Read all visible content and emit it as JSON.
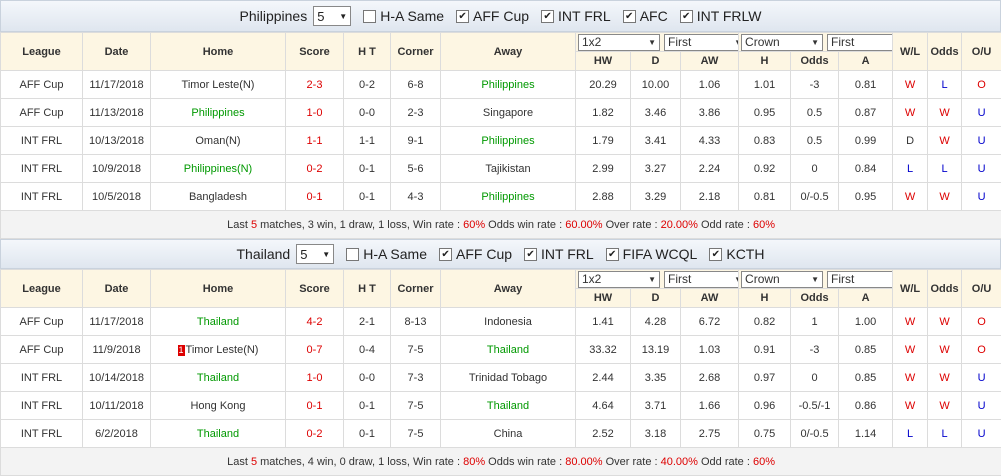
{
  "header_columns": [
    "League",
    "Date",
    "Home",
    "Score",
    "H T",
    "Corner",
    "Away"
  ],
  "odds_selects": [
    "1x2",
    "First",
    "Crown",
    "First"
  ],
  "odds_columns": [
    "HW",
    "D",
    "AW",
    "H",
    "Odds",
    "A"
  ],
  "result_columns": [
    "W/L",
    "Odds",
    "O/U"
  ],
  "sections": [
    {
      "team": "Philippines",
      "count": "5",
      "filters": [
        {
          "label": "H-A Same",
          "checked": false
        },
        {
          "label": "AFF Cup",
          "checked": true
        },
        {
          "label": "INT FRL",
          "checked": true
        },
        {
          "label": "AFC",
          "checked": true
        },
        {
          "label": "INT FRLW",
          "checked": true
        }
      ],
      "rows": [
        {
          "league": "AFF Cup",
          "date": "11/17/2018",
          "home": "Timor Leste(N)",
          "score": "2-3",
          "ht": "0-2",
          "corner": "6-8",
          "away": "Philippines",
          "hw": "20.29",
          "d": "10.00",
          "aw": "1.06",
          "h": "1.01",
          "odds": "-3",
          "a": "0.81",
          "wl": "W",
          "odds_result": "L",
          "ou": "O"
        },
        {
          "league": "AFF Cup",
          "date": "11/13/2018",
          "home": "Philippines",
          "score": "1-0",
          "ht": "0-0",
          "corner": "2-3",
          "away": "Singapore",
          "hw": "1.82",
          "d": "3.46",
          "aw": "3.86",
          "h": "0.95",
          "odds": "0.5",
          "a": "0.87",
          "wl": "W",
          "odds_result": "W",
          "ou": "U"
        },
        {
          "league": "INT FRL",
          "date": "10/13/2018",
          "home": "Oman(N)",
          "score": "1-1",
          "ht": "1-1",
          "corner": "9-1",
          "away": "Philippines",
          "hw": "1.79",
          "d": "3.41",
          "aw": "4.33",
          "h": "0.83",
          "odds": "0.5",
          "a": "0.99",
          "wl": "D",
          "odds_result": "W",
          "ou": "U"
        },
        {
          "league": "INT FRL",
          "date": "10/9/2018",
          "home": "Philippines(N)",
          "score": "0-2",
          "ht": "0-1",
          "corner": "5-6",
          "away": "Tajikistan",
          "hw": "2.99",
          "d": "3.27",
          "aw": "2.24",
          "h": "0.92",
          "odds": "0",
          "a": "0.84",
          "wl": "L",
          "odds_result": "L",
          "ou": "U"
        },
        {
          "league": "INT FRL",
          "date": "10/5/2018",
          "home": "Bangladesh",
          "score": "0-1",
          "ht": "0-1",
          "corner": "4-3",
          "away": "Philippines",
          "hw": "2.88",
          "d": "3.29",
          "aw": "2.18",
          "h": "0.81",
          "odds": "0/-0.5",
          "a": "0.95",
          "wl": "W",
          "odds_result": "W",
          "ou": "U"
        }
      ],
      "summary": [
        "Last ",
        "5",
        " matches, 3 win, 1 draw, 1 loss, Win rate : ",
        "60%",
        " Odds win rate : ",
        "60.00%",
        " Over rate : ",
        "20.00%",
        " Odd rate : ",
        "60%"
      ]
    },
    {
      "team": "Thailand",
      "count": "5",
      "filters": [
        {
          "label": "H-A Same",
          "checked": false
        },
        {
          "label": "AFF Cup",
          "checked": true
        },
        {
          "label": "INT FRL",
          "checked": true
        },
        {
          "label": "FIFA WCQL",
          "checked": true
        },
        {
          "label": "KCTH",
          "checked": true
        }
      ],
      "rows": [
        {
          "league": "AFF Cup",
          "date": "11/17/2018",
          "home": "Thailand",
          "score": "4-2",
          "ht": "2-1",
          "corner": "8-13",
          "away": "Indonesia",
          "hw": "1.41",
          "d": "4.28",
          "aw": "6.72",
          "h": "0.82",
          "odds": "1",
          "a": "1.00",
          "wl": "W",
          "odds_result": "W",
          "ou": "O"
        },
        {
          "league": "AFF Cup",
          "date": "11/9/2018",
          "red_card": "1",
          "home": "Timor Leste(N)",
          "score": "0-7",
          "ht": "0-4",
          "corner": "7-5",
          "away": "Thailand",
          "hw": "33.32",
          "d": "13.19",
          "aw": "1.03",
          "h": "0.91",
          "odds": "-3",
          "a": "0.85",
          "wl": "W",
          "odds_result": "W",
          "ou": "O"
        },
        {
          "league": "INT FRL",
          "date": "10/14/2018",
          "home": "Thailand",
          "score": "1-0",
          "ht": "0-0",
          "corner": "7-3",
          "away": "Trinidad Tobago",
          "hw": "2.44",
          "d": "3.35",
          "aw": "2.68",
          "h": "0.97",
          "odds": "0",
          "a": "0.85",
          "wl": "W",
          "odds_result": "W",
          "ou": "U"
        },
        {
          "league": "INT FRL",
          "date": "10/11/2018",
          "home": "Hong Kong",
          "score": "0-1",
          "ht": "0-1",
          "corner": "7-5",
          "away": "Thailand",
          "hw": "4.64",
          "d": "3.71",
          "aw": "1.66",
          "h": "0.96",
          "odds": "-0.5/-1",
          "a": "0.86",
          "wl": "W",
          "odds_result": "W",
          "ou": "U"
        },
        {
          "league": "INT FRL",
          "date": "6/2/2018",
          "home": "Thailand",
          "score": "0-2",
          "ht": "0-1",
          "corner": "7-5",
          "away": "China",
          "hw": "2.52",
          "d": "3.18",
          "aw": "2.75",
          "h": "0.75",
          "odds": "0/-0.5",
          "a": "1.14",
          "wl": "L",
          "odds_result": "L",
          "ou": "U"
        }
      ],
      "summary": [
        "Last ",
        "5",
        " matches, 4 win, 0 draw, 1 loss, Win rate : ",
        "80%",
        " Odds win rate : ",
        "80.00%",
        " Over rate : ",
        "40.00%",
        " Odd rate : ",
        "60%"
      ]
    }
  ]
}
